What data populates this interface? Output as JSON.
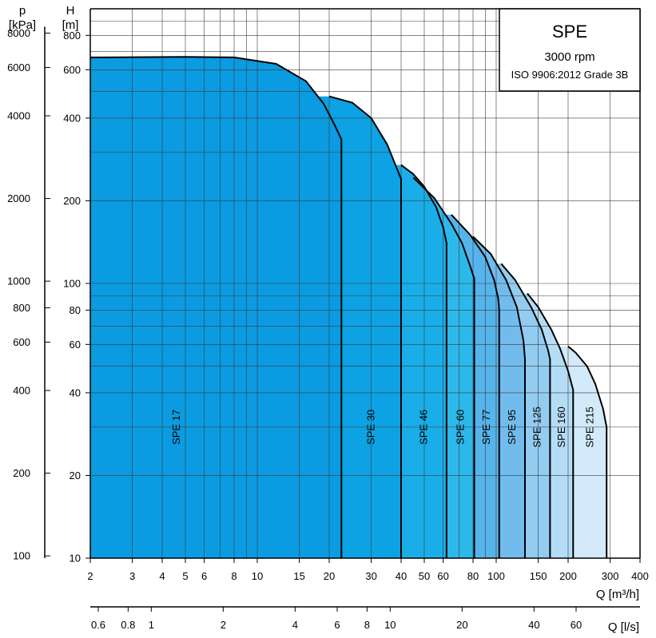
{
  "chart_data": {
    "type": "area",
    "title": "SPE",
    "subtitle_speed": "3000 rpm",
    "subtitle_standard": "ISO 9906:2012 Grade 3B",
    "x_scale": "log",
    "y_scale": "log",
    "xlabel": "Q [m³/h]",
    "xlabel_secondary": "Q [l/s]",
    "ylabel_head_unit": "H",
    "ylabel_head_unit2": "[m]",
    "ylabel_pressure_unit": "p",
    "ylabel_pressure_unit2": "[kPa]",
    "xlim": [
      2,
      400
    ],
    "ylim": [
      10,
      1000
    ],
    "x_ticks": [
      2,
      3,
      4,
      5,
      6,
      8,
      10,
      15,
      20,
      30,
      40,
      50,
      60,
      80,
      100,
      150,
      200,
      300,
      400
    ],
    "x_tick_labels": [
      "2",
      "3",
      "4",
      "5",
      "6",
      "8",
      "10",
      "15",
      "20",
      "30",
      "40",
      "50",
      "60",
      "80",
      "100",
      "150",
      "200",
      "300",
      "400"
    ],
    "x2_ticks": [
      0.6,
      0.8,
      1,
      2,
      4,
      6,
      8,
      10,
      20,
      40,
      60
    ],
    "x2_tick_labels": [
      "0.6",
      "0.8",
      "1",
      "2",
      "4",
      "6",
      "8",
      "10",
      "20",
      "40",
      "60"
    ],
    "y_ticks": [
      10,
      20,
      40,
      60,
      80,
      100,
      200,
      400,
      600,
      800
    ],
    "y_tick_labels": [
      "10",
      "20",
      "40",
      "60",
      "80",
      "100",
      "200",
      "400",
      "600",
      "800"
    ],
    "y2_ticks": [
      100,
      200,
      400,
      600,
      800,
      1000,
      2000,
      4000,
      6000,
      8000
    ],
    "y2_tick_labels": [
      "100",
      "200",
      "400",
      "600",
      "800",
      "1000",
      "2000",
      "4000",
      "6000",
      "8000"
    ],
    "grid": true,
    "series": [
      {
        "name": "SPE 215",
        "color": "#d2eaf9",
        "q_end": 290,
        "points": [
          [
            200,
            59
          ],
          [
            215,
            56
          ],
          [
            240,
            50
          ],
          [
            260,
            43
          ],
          [
            280,
            35
          ],
          [
            290,
            30
          ]
        ]
      },
      {
        "name": "SPE 160",
        "color": "#b4dcf5",
        "q_end": 210,
        "points": [
          [
            135,
            92
          ],
          [
            150,
            82
          ],
          [
            170,
            68
          ],
          [
            185,
            58
          ],
          [
            200,
            48
          ],
          [
            210,
            41
          ]
        ]
      },
      {
        "name": "SPE 125",
        "color": "#93ccf1",
        "q_end": 168,
        "points": [
          [
            105,
            118
          ],
          [
            120,
            103
          ],
          [
            140,
            82
          ],
          [
            155,
            68
          ],
          [
            165,
            57
          ],
          [
            168,
            53
          ]
        ]
      },
      {
        "name": "SPE 95",
        "color": "#72bced",
        "q_end": 132,
        "points": [
          [
            80,
            148
          ],
          [
            95,
            128
          ],
          [
            110,
            103
          ],
          [
            122,
            82
          ],
          [
            130,
            62
          ],
          [
            132,
            53
          ]
        ]
      },
      {
        "name": "SPE 77",
        "color": "#56b4ec",
        "q_end": 103,
        "points": [
          [
            65,
            178
          ],
          [
            78,
            150
          ],
          [
            90,
            125
          ],
          [
            98,
            103
          ],
          [
            102,
            88
          ],
          [
            103,
            80
          ]
        ]
      },
      {
        "name": "SPE 60",
        "color": "#2db8ea",
        "q_end": 81,
        "points": [
          [
            45,
            243
          ],
          [
            55,
            205
          ],
          [
            65,
            165
          ],
          [
            72,
            140
          ],
          [
            78,
            115
          ],
          [
            81,
            104
          ]
        ]
      },
      {
        "name": "SPE 46",
        "color": "#19aee8",
        "q_end": 62,
        "points": [
          [
            40,
            270
          ],
          [
            45,
            250
          ],
          [
            50,
            225
          ],
          [
            56,
            190
          ],
          [
            60,
            160
          ],
          [
            62,
            140
          ]
        ]
      },
      {
        "name": "SPE 30",
        "color": "#0da2e3",
        "q_end": 40,
        "points": [
          [
            20,
            480
          ],
          [
            25,
            455
          ],
          [
            30,
            400
          ],
          [
            35,
            320
          ],
          [
            40,
            240
          ],
          [
            40,
            222
          ]
        ]
      },
      {
        "name": "SPE 17",
        "color": "#0a9be0",
        "q_end": 22.5,
        "points": [
          [
            2,
            665
          ],
          [
            5,
            668
          ],
          [
            8,
            665
          ],
          [
            12,
            630
          ],
          [
            16,
            545
          ],
          [
            19,
            450
          ],
          [
            21,
            380
          ],
          [
            22.5,
            335
          ]
        ]
      }
    ]
  }
}
